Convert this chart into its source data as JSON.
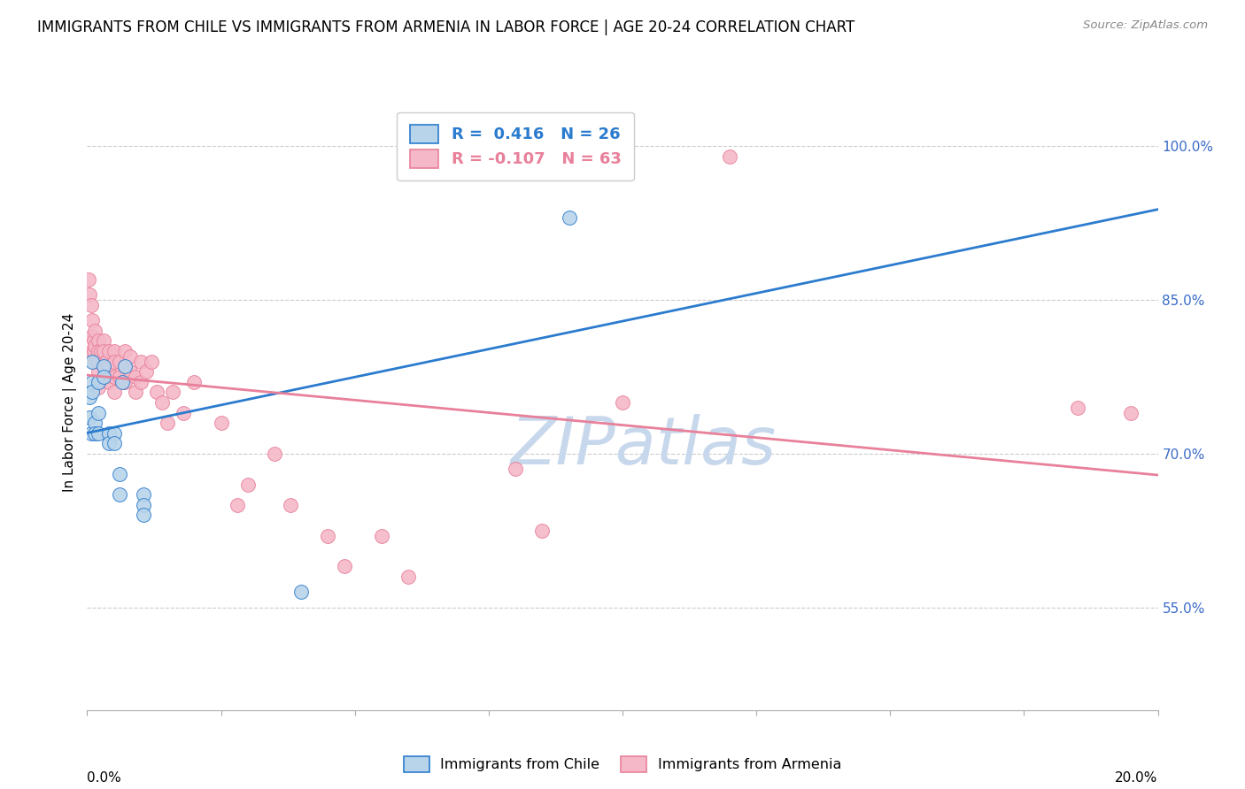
{
  "title": "IMMIGRANTS FROM CHILE VS IMMIGRANTS FROM ARMENIA IN LABOR FORCE | AGE 20-24 CORRELATION CHART",
  "source": "Source: ZipAtlas.com",
  "ylabel": "In Labor Force | Age 20-24",
  "ylabel_ticks": [
    "100.0%",
    "85.0%",
    "70.0%",
    "55.0%"
  ],
  "ylabel_values": [
    1.0,
    0.85,
    0.7,
    0.55
  ],
  "xmin": 0.0,
  "xmax": 0.2,
  "ymin": 0.45,
  "ymax": 1.05,
  "chile_R": 0.416,
  "chile_N": 26,
  "armenia_R": -0.107,
  "armenia_N": 63,
  "chile_color": "#b8d4ea",
  "armenia_color": "#f5b8c8",
  "chile_line_color": "#2b7bce",
  "armenia_line_color": "#e8809a",
  "watermark_color": "#c8d8ec",
  "chile_x": [
    0.0005,
    0.0005,
    0.0008,
    0.001,
    0.001,
    0.001,
    0.0015,
    0.0015,
    0.002,
    0.002,
    0.002,
    0.003,
    0.003,
    0.004,
    0.004,
    0.005,
    0.005,
    0.006,
    0.006,
    0.0065,
    0.007,
    0.0105,
    0.0105,
    0.0105,
    0.04,
    0.09
  ],
  "chile_y": [
    0.755,
    0.735,
    0.72,
    0.79,
    0.77,
    0.76,
    0.73,
    0.72,
    0.77,
    0.74,
    0.72,
    0.785,
    0.775,
    0.72,
    0.71,
    0.72,
    0.71,
    0.68,
    0.66,
    0.77,
    0.785,
    0.66,
    0.65,
    0.64,
    0.565,
    0.93
  ],
  "armenia_x": [
    0.0003,
    0.0005,
    0.0008,
    0.001,
    0.001,
    0.001,
    0.0012,
    0.0013,
    0.0015,
    0.0015,
    0.0015,
    0.002,
    0.002,
    0.002,
    0.002,
    0.002,
    0.0025,
    0.003,
    0.003,
    0.003,
    0.0035,
    0.0035,
    0.004,
    0.004,
    0.004,
    0.005,
    0.005,
    0.005,
    0.005,
    0.006,
    0.006,
    0.007,
    0.007,
    0.007,
    0.008,
    0.008,
    0.009,
    0.009,
    0.01,
    0.01,
    0.011,
    0.012,
    0.013,
    0.014,
    0.015,
    0.016,
    0.018,
    0.02,
    0.025,
    0.028,
    0.03,
    0.035,
    0.038,
    0.045,
    0.048,
    0.055,
    0.06,
    0.08,
    0.085,
    0.1,
    0.12,
    0.185,
    0.195
  ],
  "armenia_y": [
    0.87,
    0.855,
    0.845,
    0.83,
    0.815,
    0.8,
    0.81,
    0.8,
    0.82,
    0.805,
    0.79,
    0.81,
    0.8,
    0.79,
    0.78,
    0.765,
    0.8,
    0.81,
    0.8,
    0.785,
    0.79,
    0.775,
    0.8,
    0.785,
    0.77,
    0.8,
    0.79,
    0.775,
    0.76,
    0.79,
    0.775,
    0.8,
    0.785,
    0.77,
    0.795,
    0.78,
    0.775,
    0.76,
    0.79,
    0.77,
    0.78,
    0.79,
    0.76,
    0.75,
    0.73,
    0.76,
    0.74,
    0.77,
    0.73,
    0.65,
    0.67,
    0.7,
    0.65,
    0.62,
    0.59,
    0.62,
    0.58,
    0.685,
    0.625,
    0.75,
    0.99,
    0.745,
    0.74
  ]
}
